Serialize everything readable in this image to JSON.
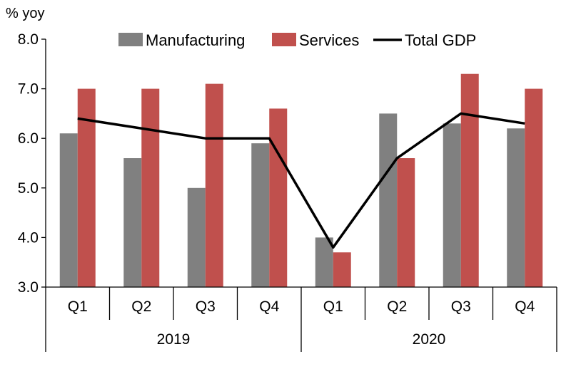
{
  "chart_data": {
    "type": "bar",
    "ylabel": "% yoy",
    "ylim": [
      3.0,
      8.0
    ],
    "yticks": [
      "3.0",
      "4.0",
      "5.0",
      "6.0",
      "7.0",
      "8.0"
    ],
    "categories": [
      "Q1",
      "Q2",
      "Q3",
      "Q4",
      "Q1",
      "Q2",
      "Q3",
      "Q4"
    ],
    "groups": [
      {
        "label": "2019",
        "count": 4
      },
      {
        "label": "2020",
        "count": 4
      }
    ],
    "series": [
      {
        "name": "Manufacturing",
        "kind": "bar",
        "color": "#808080",
        "values": [
          6.1,
          5.6,
          5.0,
          5.9,
          4.0,
          6.5,
          6.3,
          6.2
        ]
      },
      {
        "name": "Services",
        "kind": "bar",
        "color": "#c0504d",
        "values": [
          7.0,
          7.0,
          7.1,
          6.6,
          3.7,
          5.6,
          7.3,
          7.0
        ]
      },
      {
        "name": "Total GDP",
        "kind": "line",
        "color": "#000000",
        "values": [
          6.4,
          6.2,
          6.0,
          6.0,
          3.8,
          5.6,
          6.5,
          6.3
        ]
      }
    ],
    "legend": "top",
    "grid": false
  }
}
